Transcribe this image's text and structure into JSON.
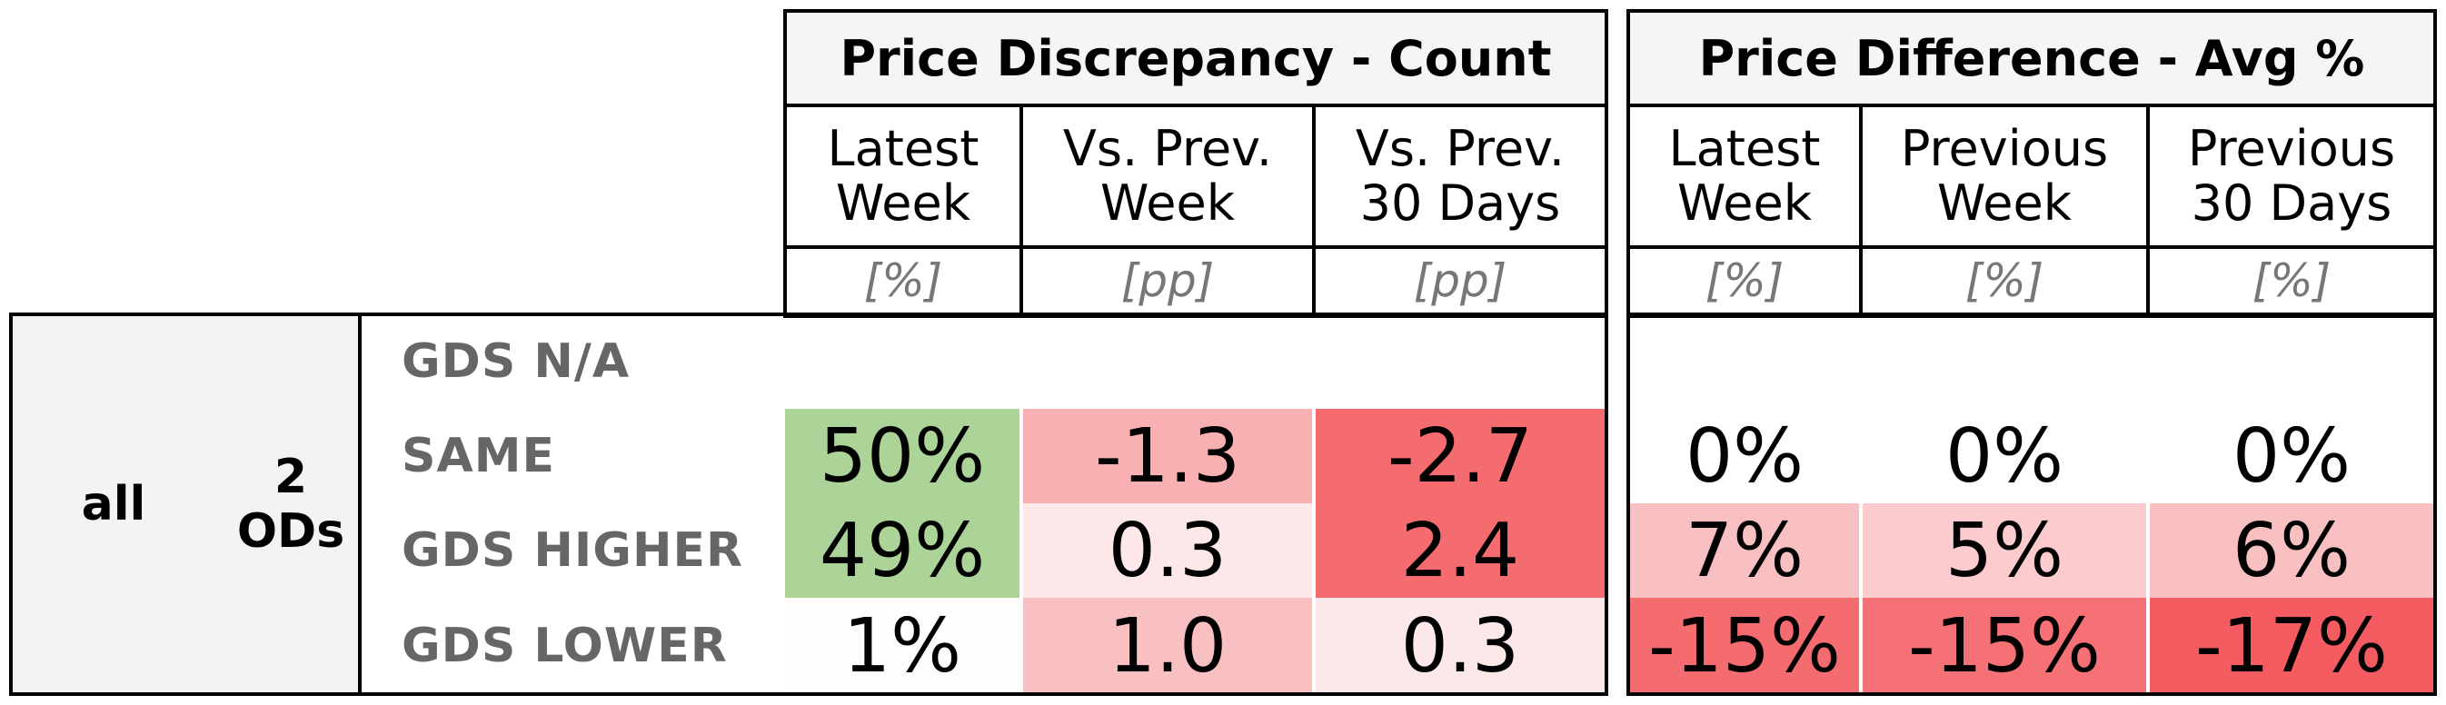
{
  "chart_data": {
    "type": "table",
    "groups": [
      {
        "title": "Price Discrepancy - Count",
        "columns": [
          {
            "label": "Latest\nWeek",
            "unit": "[%]"
          },
          {
            "label": "Vs. Prev.\nWeek",
            "unit": "[pp]"
          },
          {
            "label": "Vs. Prev.\n30 Days",
            "unit": "[pp]"
          }
        ]
      },
      {
        "title": "Price Difference - Avg %",
        "columns": [
          {
            "label": "Latest\nWeek",
            "unit": "[%]"
          },
          {
            "label": "Previous\nWeek",
            "unit": "[%]"
          },
          {
            "label": "Previous\n30 Days",
            "unit": "[%]"
          }
        ]
      }
    ],
    "dimensions": {
      "level1": "all",
      "level2": "2\nODs"
    },
    "row_labels": [
      "GDS N/A",
      "SAME",
      "GDS HIGHER",
      "GDS LOWER"
    ],
    "rows": [
      {
        "label": "GDS N/A",
        "discrepancy": [
          "",
          "",
          ""
        ],
        "difference": [
          "",
          "",
          ""
        ],
        "discrepancy_colors": [
          "#ffffff",
          "#ffffff",
          "#ffffff"
        ],
        "difference_colors": [
          "#ffffff",
          "#ffffff",
          "#ffffff"
        ]
      },
      {
        "label": "SAME",
        "discrepancy": [
          "50%",
          "-1.3",
          "-2.7"
        ],
        "difference": [
          "0%",
          "0%",
          "0%"
        ],
        "discrepancy_colors": [
          "#acd498",
          "#f9b0b2",
          "#f56c70"
        ],
        "difference_colors": [
          "#ffffff",
          "#ffffff",
          "#ffffff"
        ]
      },
      {
        "label": "GDS HIGHER",
        "discrepancy": [
          "49%",
          "0.3",
          "2.4"
        ],
        "difference": [
          "7%",
          "5%",
          "6%"
        ],
        "discrepancy_colors": [
          "#acd498",
          "#fde8e9",
          "#f56c70"
        ],
        "difference_colors": [
          "#f9c0c2",
          "#fbcbcd",
          "#f9c0c2"
        ]
      },
      {
        "label": "GDS LOWER",
        "discrepancy": [
          "1%",
          "1.0",
          "0.3"
        ],
        "difference": [
          "-15%",
          "-15%",
          "-17%"
        ],
        "discrepancy_colors": [
          "#fefdfc",
          "#f9c0c2",
          "#fde8e9"
        ],
        "difference_colors": [
          "#f56c70",
          "#f57175",
          "#f45c62"
        ]
      }
    ]
  }
}
